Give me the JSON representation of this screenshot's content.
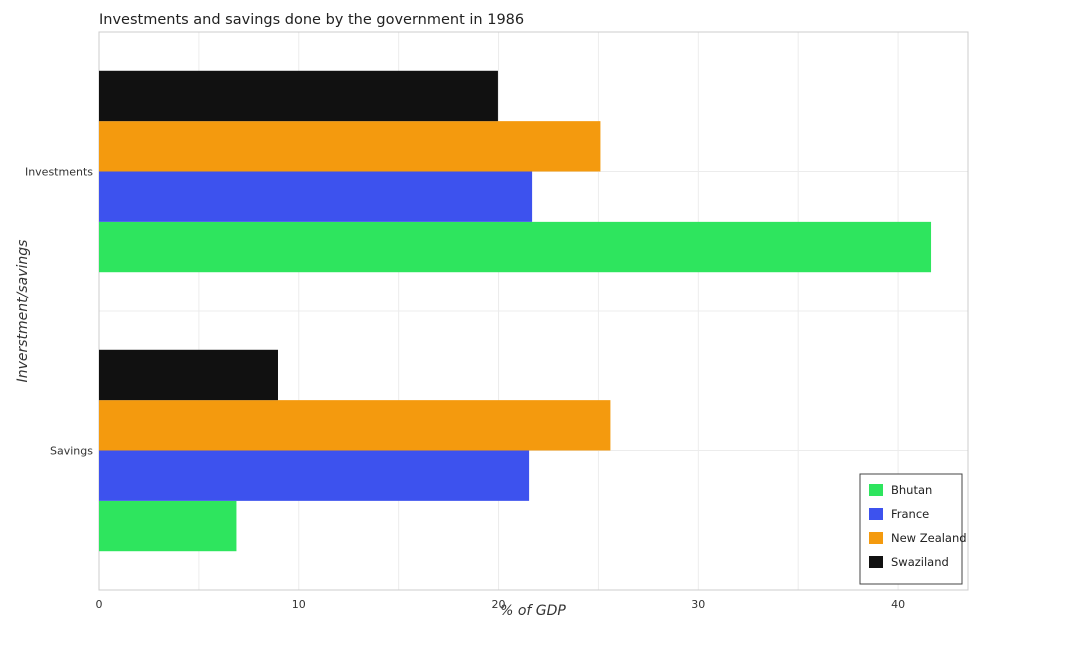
{
  "chart_data": {
    "type": "bar",
    "orientation": "horizontal",
    "title": "Investments and savings done by the government in 1986",
    "xlabel": "% of GDP",
    "ylabel": "Inverstment/savings",
    "categories": [
      "Investments",
      "Savings"
    ],
    "x_ticks": [
      0,
      10,
      20,
      30,
      40
    ],
    "xlim": [
      0,
      43.5
    ],
    "grid": true,
    "legend_position": "bottom-right",
    "series": [
      {
        "name": "Bhutan",
        "color": "#2ee55e",
        "values": [
          41.65,
          6.88
        ]
      },
      {
        "name": "France",
        "color": "#3d52ee",
        "values": [
          21.68,
          21.53
        ]
      },
      {
        "name": "New Zealand",
        "color": "#f49a0e",
        "values": [
          25.1,
          25.6
        ]
      },
      {
        "name": "Swaziland",
        "color": "#111111",
        "values": [
          19.97,
          8.96
        ]
      }
    ]
  }
}
